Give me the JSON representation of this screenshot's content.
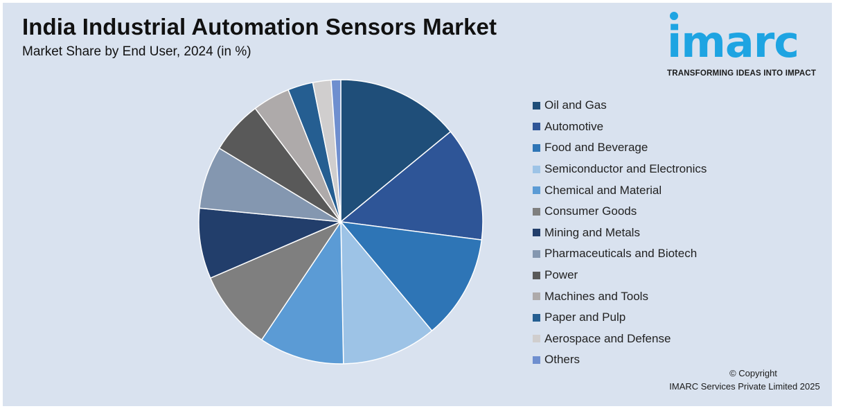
{
  "header": {
    "title": "India Industrial Automation Sensors Market",
    "subtitle": "Market Share by End User, 2024 (in %)"
  },
  "logo": {
    "brand": "imarc",
    "tagline": "TRANSFORMING IDEAS INTO IMPACT",
    "color": "#1ea4e2"
  },
  "footer": {
    "copyright_line1": "© Copyright",
    "copyright_line2": "IMARC Services Private Limited 2025"
  },
  "chart_data": {
    "type": "pie",
    "title": "India Industrial Automation Sensors Market",
    "subtitle": "Market Share by End User, 2024 (in %)",
    "legend_position": "right",
    "start_angle": "12 o'clock, clockwise",
    "slices": [
      {
        "label": "Oil and Gas",
        "value": 14.2,
        "color": "#1f4e79"
      },
      {
        "label": "Automotive",
        "value": 13.1,
        "color": "#2e5597"
      },
      {
        "label": "Food and Beverage",
        "value": 12.0,
        "color": "#2e75b6"
      },
      {
        "label": "Semiconductor and Electronics",
        "value": 10.9,
        "color": "#9dc3e6"
      },
      {
        "label": "Chemical and Material",
        "value": 9.8,
        "color": "#5b9bd5"
      },
      {
        "label": "Consumer Goods",
        "value": 9.2,
        "color": "#7f7f7f"
      },
      {
        "label": "Mining and Metals",
        "value": 8.1,
        "color": "#223e6b"
      },
      {
        "label": "Pharmaceuticals and Biotech",
        "value": 7.2,
        "color": "#8497b0"
      },
      {
        "label": "Power",
        "value": 6.1,
        "color": "#595959"
      },
      {
        "label": "Machines and Tools",
        "value": 4.3,
        "color": "#aeaaaa"
      },
      {
        "label": "Paper and Pulp",
        "value": 2.9,
        "color": "#255e91"
      },
      {
        "label": "Aerospace and Defense",
        "value": 2.1,
        "color": "#d0cece"
      },
      {
        "label": "Others",
        "value": 1.1,
        "color": "#6f8fcf"
      }
    ]
  }
}
